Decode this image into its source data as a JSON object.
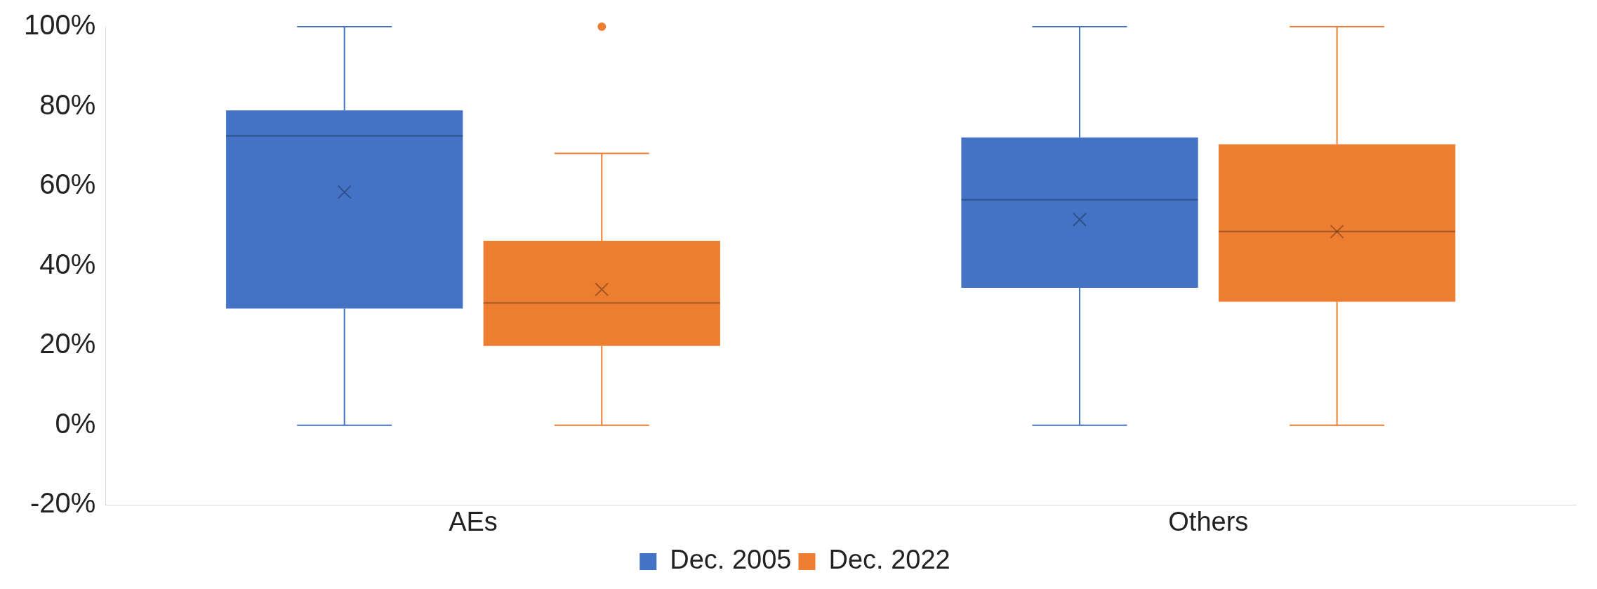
{
  "chart_data": {
    "type": "box",
    "categories": [
      "AEs",
      "Others"
    ],
    "series": [
      {
        "name": "Dec. 2005",
        "color": "#4472c4",
        "boxes": [
          {
            "low": 0,
            "q1": 29.3,
            "median": 72.6,
            "q3": 79,
            "high": 100,
            "mean": 58.5
          },
          {
            "low": 0,
            "q1": 34.5,
            "median": 56.6,
            "q3": 72.2,
            "high": 100,
            "mean": 51.6
          }
        ]
      },
      {
        "name": "Dec. 2022",
        "color": "#ed7d31",
        "boxes": [
          {
            "low": 0,
            "q1": 19.9,
            "median": 30.7,
            "q3": 46.3,
            "high": 68.2,
            "mean": 34.1,
            "outliers": [
              100
            ]
          },
          {
            "low": 0,
            "q1": 31,
            "median": 48.6,
            "q3": 70.5,
            "high": 100,
            "mean": 48.6
          }
        ]
      }
    ],
    "ylim": [
      -20,
      100
    ],
    "yticks": [
      {
        "value": -20,
        "label": "-20%"
      },
      {
        "value": 0,
        "label": "0%"
      },
      {
        "value": 20,
        "label": "20%"
      },
      {
        "value": 40,
        "label": "40%"
      },
      {
        "value": 60,
        "label": "60%"
      },
      {
        "value": 80,
        "label": "80%"
      },
      {
        "value": 100,
        "label": "100%"
      }
    ],
    "grid": false,
    "legend": "bottom"
  }
}
